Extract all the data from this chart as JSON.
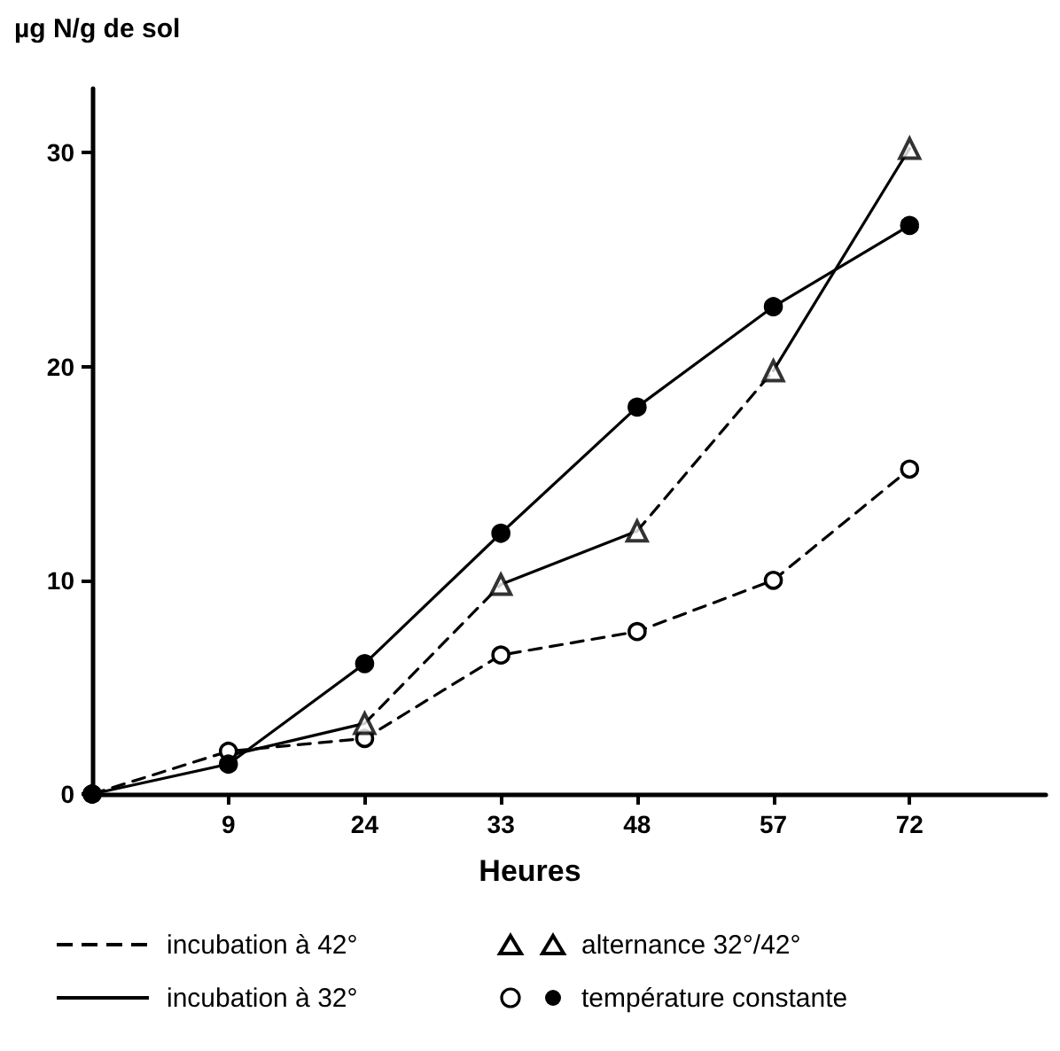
{
  "chart_data": {
    "type": "line",
    "ylabel": "µg N/g de sol",
    "xlabel": "Heures",
    "categories": [
      null,
      "9",
      "24",
      "33",
      "48",
      "57",
      "72",
      null
    ],
    "ylim": [
      0,
      33
    ],
    "yticks": [
      0,
      10,
      20,
      30
    ],
    "grid": false,
    "series": [
      {
        "color": "#000000",
        "marker": "circle",
        "line_style": "dashed",
        "values": [
          0,
          2.0,
          2.6,
          6.5,
          7.6,
          10.0,
          15.2,
          null
        ]
      },
      {
        "color": "#000000",
        "marker": "circle",
        "line_style": "solid",
        "values": [
          0,
          1.4,
          6.1,
          12.2,
          18.1,
          22.8,
          26.6,
          null
        ]
      },
      {
        "type": "scatter",
        "color": "#000000",
        "marker": "triangle",
        "values": [
          null,
          null,
          3.3,
          9.8,
          12.3,
          19.8,
          30.2,
          null
        ]
      },
      {
        "color": "#000000",
        "marker": "none",
        "line_style": "solid",
        "values": [
          null,
          1.8,
          3.3,
          null,
          null,
          null,
          null,
          null
        ]
      },
      {
        "color": "#000000",
        "marker": "none",
        "line_style": "dashed",
        "values": [
          null,
          null,
          3.3,
          9.8,
          null,
          null,
          null,
          null
        ]
      },
      {
        "color": "#000000",
        "marker": "none",
        "line_style": "solid",
        "values": [
          null,
          null,
          null,
          9.8,
          12.3,
          null,
          null,
          null
        ]
      },
      {
        "color": "#000000",
        "marker": "none",
        "line_style": "dashed",
        "values": [
          null,
          null,
          null,
          null,
          12.3,
          19.8,
          null,
          null
        ]
      },
      {
        "color": "#000000",
        "marker": "none",
        "line_style": "solid",
        "values": [
          null,
          null,
          null,
          null,
          null,
          19.8,
          30.2,
          null
        ]
      }
    ],
    "annotations": [
      "incubation à 42°",
      "alternance 32°/42°",
      "incubation à 32°",
      "température constante"
    ]
  }
}
